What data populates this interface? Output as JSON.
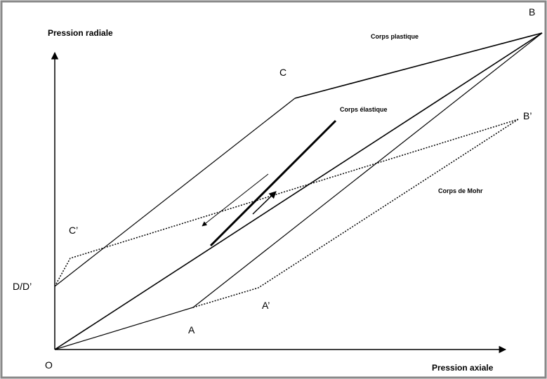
{
  "axes": {
    "y_label": "Pression radiale",
    "x_label": "Pression axiale",
    "origin": "O"
  },
  "points": {
    "B": "B",
    "C": "C",
    "B_prime": "B’",
    "C_prime": "C’",
    "D": "D/D’",
    "A": "A",
    "A_prime": "A’"
  },
  "regions": {
    "plastic": "Corps plastique",
    "elastic": "Corps élastique",
    "mohr": "Corps de Mohr"
  }
}
